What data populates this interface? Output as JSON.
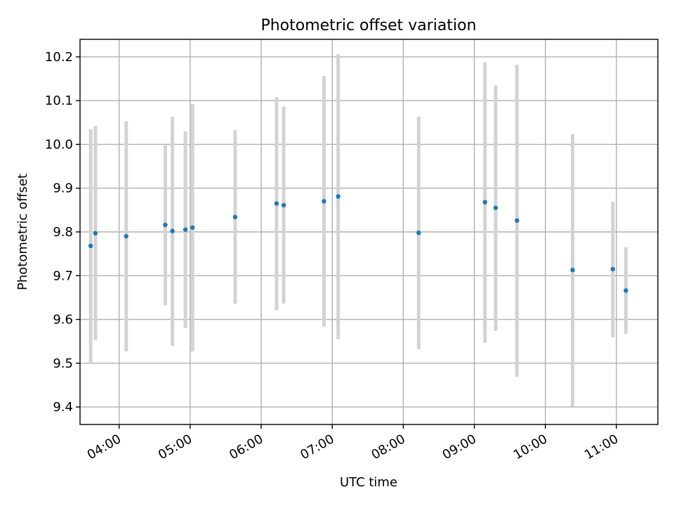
{
  "chart_data": {
    "type": "scatter",
    "title": "Photometric offset variation",
    "xlabel": "UTC time",
    "ylabel": "Photometric offset",
    "xlim": [
      "03:27",
      "11:35"
    ],
    "ylim": [
      9.36,
      10.24
    ],
    "x_ticks": [
      "04:00",
      "05:00",
      "06:00",
      "07:00",
      "08:00",
      "09:00",
      "10:00",
      "11:00"
    ],
    "y_ticks": [
      "9.4",
      "9.5",
      "9.6",
      "9.7",
      "9.8",
      "9.9",
      "10.0",
      "10.1",
      "10.2"
    ],
    "grid": true,
    "point_color": "#1f77b4",
    "errorbar_color": "#d3d3d3",
    "points": [
      {
        "x": "03:36",
        "y": 9.768,
        "ylow": 9.5,
        "yhigh": 10.035
      },
      {
        "x": "03:40",
        "y": 9.797,
        "ylow": 9.552,
        "yhigh": 10.042
      },
      {
        "x": "04:06",
        "y": 9.79,
        "ylow": 9.527,
        "yhigh": 10.053
      },
      {
        "x": "04:39",
        "y": 9.816,
        "ylow": 9.632,
        "yhigh": 9.998
      },
      {
        "x": "04:45",
        "y": 9.802,
        "ylow": 9.54,
        "yhigh": 10.063
      },
      {
        "x": "04:56",
        "y": 9.805,
        "ylow": 9.58,
        "yhigh": 10.03
      },
      {
        "x": "05:02",
        "y": 9.81,
        "ylow": 9.527,
        "yhigh": 10.092
      },
      {
        "x": "05:38",
        "y": 9.834,
        "ylow": 9.636,
        "yhigh": 10.032
      },
      {
        "x": "06:13",
        "y": 9.865,
        "ylow": 9.621,
        "yhigh": 10.108
      },
      {
        "x": "06:19",
        "y": 9.861,
        "ylow": 9.636,
        "yhigh": 10.086
      },
      {
        "x": "06:53",
        "y": 9.87,
        "ylow": 9.583,
        "yhigh": 10.156
      },
      {
        "x": "07:05",
        "y": 9.881,
        "ylow": 9.555,
        "yhigh": 10.206
      },
      {
        "x": "08:13",
        "y": 9.798,
        "ylow": 9.532,
        "yhigh": 10.063
      },
      {
        "x": "09:09",
        "y": 9.868,
        "ylow": 9.547,
        "yhigh": 10.188
      },
      {
        "x": "09:18",
        "y": 9.855,
        "ylow": 9.574,
        "yhigh": 10.135
      },
      {
        "x": "09:36",
        "y": 9.826,
        "ylow": 9.469,
        "yhigh": 10.182
      },
      {
        "x": "10:23",
        "y": 9.713,
        "ylow": 9.401,
        "yhigh": 10.024
      },
      {
        "x": "10:57",
        "y": 9.715,
        "ylow": 9.559,
        "yhigh": 9.869
      },
      {
        "x": "11:08",
        "y": 9.666,
        "ylow": 9.567,
        "yhigh": 9.765
      }
    ]
  }
}
